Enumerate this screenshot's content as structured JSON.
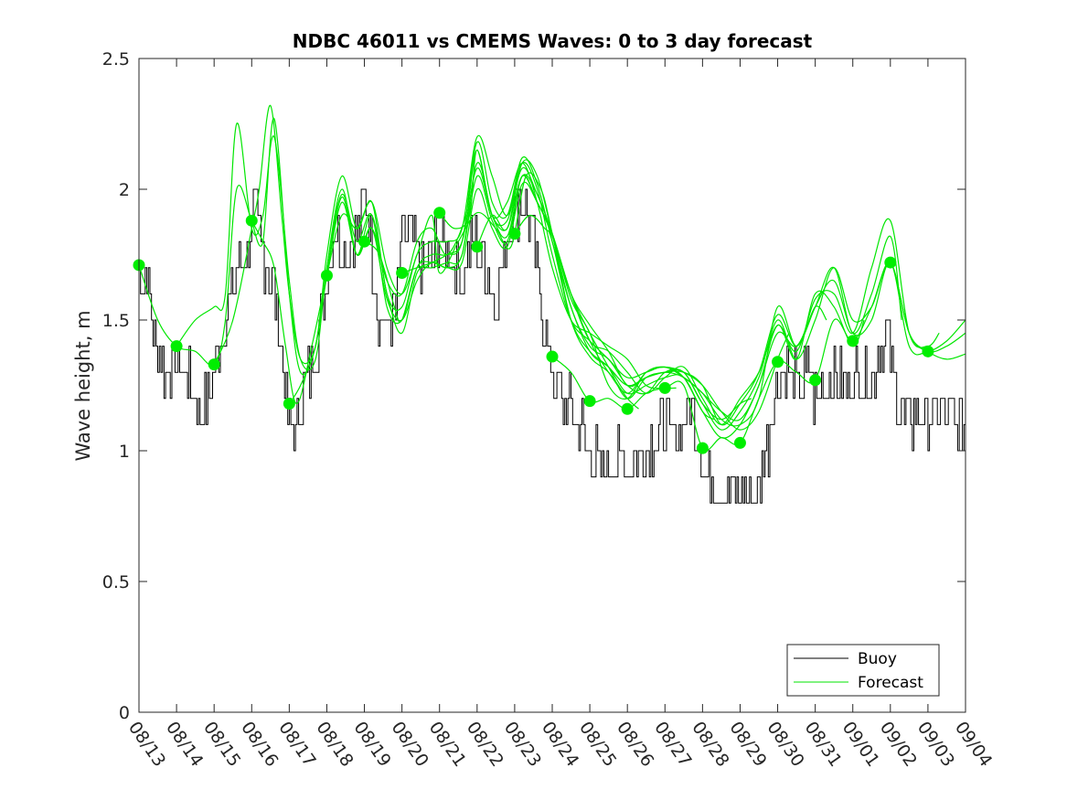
{
  "chart_data": {
    "type": "line",
    "title": "NDBC 46011 vs CMEMS Waves: 0 to 3 day forecast",
    "xlabel": "",
    "ylabel": "Wave height, m",
    "ylim": [
      0,
      2.5
    ],
    "xlim": [
      0,
      22
    ],
    "yticks": [
      "0",
      "0.5",
      "1",
      "1.5",
      "2",
      "2.5"
    ],
    "xticks": [
      "08/13",
      "08/14",
      "08/15",
      "08/16",
      "08/17",
      "08/18",
      "08/19",
      "08/20",
      "08/21",
      "08/22",
      "08/23",
      "08/24",
      "08/25",
      "08/26",
      "08/27",
      "08/28",
      "08/29",
      "08/30",
      "08/31",
      "09/01",
      "09/02",
      "09/03",
      "09/04"
    ],
    "legend": {
      "location": "bottom-right",
      "entries": [
        "Buoy",
        "Forecast"
      ]
    },
    "colors": {
      "buoy": "#000000",
      "forecast": "#00e600",
      "marker": "#00ee00",
      "axes": "#262626"
    },
    "buoy_anchors": [
      [
        0.0,
        1.65
      ],
      [
        0.25,
        1.65
      ],
      [
        0.4,
        1.45
      ],
      [
        0.7,
        1.3
      ],
      [
        1.0,
        1.35
      ],
      [
        1.3,
        1.3
      ],
      [
        1.5,
        1.2
      ],
      [
        1.75,
        1.15
      ],
      [
        2.0,
        1.25
      ],
      [
        2.3,
        1.5
      ],
      [
        2.6,
        1.65
      ],
      [
        2.9,
        1.75
      ],
      [
        3.1,
        1.9
      ],
      [
        3.35,
        1.75
      ],
      [
        3.6,
        1.65
      ],
      [
        3.85,
        1.4
      ],
      [
        4.0,
        1.1
      ],
      [
        4.15,
        1.05
      ],
      [
        4.4,
        1.2
      ],
      [
        4.7,
        1.35
      ],
      [
        5.0,
        1.65
      ],
      [
        5.3,
        1.85
      ],
      [
        5.6,
        1.75
      ],
      [
        5.9,
        1.85
      ],
      [
        6.05,
        2.0
      ],
      [
        6.2,
        1.8
      ],
      [
        6.4,
        1.55
      ],
      [
        6.65,
        1.45
      ],
      [
        6.9,
        1.55
      ],
      [
        7.0,
        1.8
      ],
      [
        7.3,
        1.85
      ],
      [
        7.6,
        1.65
      ],
      [
        7.85,
        1.75
      ],
      [
        8.0,
        1.8
      ],
      [
        8.3,
        1.75
      ],
      [
        8.6,
        1.65
      ],
      [
        8.9,
        1.8
      ],
      [
        9.2,
        1.75
      ],
      [
        9.5,
        1.55
      ],
      [
        9.8,
        1.75
      ],
      [
        10.0,
        1.95
      ],
      [
        10.2,
        1.95
      ],
      [
        10.4,
        1.9
      ],
      [
        10.6,
        1.7
      ],
      [
        10.8,
        1.5
      ],
      [
        11.0,
        1.3
      ],
      [
        11.3,
        1.2
      ],
      [
        11.6,
        1.15
      ],
      [
        11.8,
        1.1
      ],
      [
        12.0,
        1.0
      ],
      [
        12.3,
        0.95
      ],
      [
        12.6,
        0.95
      ],
      [
        12.9,
        0.95
      ],
      [
        13.2,
        0.95
      ],
      [
        13.5,
        1.0
      ],
      [
        13.8,
        1.05
      ],
      [
        14.0,
        1.1
      ],
      [
        14.3,
        1.05
      ],
      [
        14.6,
        1.15
      ],
      [
        14.9,
        1.1
      ],
      [
        15.0,
        0.95
      ],
      [
        15.3,
        0.9
      ],
      [
        15.6,
        0.85
      ],
      [
        15.9,
        0.85
      ],
      [
        16.2,
        0.85
      ],
      [
        16.5,
        0.85
      ],
      [
        16.8,
        1.05
      ],
      [
        17.0,
        1.25
      ],
      [
        17.3,
        1.3
      ],
      [
        17.6,
        1.25
      ],
      [
        17.9,
        1.3
      ],
      [
        18.0,
        1.2
      ],
      [
        18.3,
        1.25
      ],
      [
        18.6,
        1.3
      ],
      [
        18.9,
        1.25
      ],
      [
        19.2,
        1.3
      ],
      [
        19.5,
        1.25
      ],
      [
        19.8,
        1.45
      ],
      [
        20.0,
        1.4
      ],
      [
        20.2,
        1.2
      ],
      [
        20.5,
        1.1
      ],
      [
        20.8,
        1.15
      ],
      [
        21.1,
        1.1
      ],
      [
        21.4,
        1.15
      ],
      [
        21.7,
        1.1
      ],
      [
        22.0,
        1.1
      ]
    ],
    "forecast_series": [
      {
        "name": "Forecast",
        "x": [
          0,
          0.5,
          1,
          1.5,
          2,
          2.3,
          2.6,
          3,
          3.3,
          3.6,
          3.9,
          4.2,
          4.6,
          5,
          5.4,
          5.8,
          6.2,
          6.6,
          7,
          7.4,
          7.8,
          8,
          8.5,
          9,
          9.5,
          9.9,
          10.3,
          10.7,
          11,
          11.5,
          12,
          12.5,
          13,
          13.3
        ],
        "y": [
          1.71,
          1.5,
          1.4,
          1.38,
          1.33,
          1.5,
          2.0,
          1.88,
          1.8,
          1.7,
          1.4,
          1.18,
          1.4,
          1.67,
          1.9,
          1.85,
          1.95,
          1.7,
          1.6,
          1.75,
          1.9,
          1.68,
          1.8,
          1.91,
          1.85,
          1.78,
          2.05,
          2.0,
          1.83,
          1.5,
          1.36,
          1.3,
          1.2,
          1.16
        ]
      },
      {
        "name": "Forecast",
        "x": [
          1,
          1.5,
          2,
          2.3,
          2.6,
          3,
          3.3,
          3.6,
          4,
          4.3,
          4.7,
          5,
          5.4,
          5.8,
          6.2,
          6.6,
          7,
          7.4,
          7.8,
          8.2,
          8.7,
          9,
          9.4,
          9.8,
          10.2,
          10.6,
          11,
          11.5,
          12,
          12.5,
          13,
          13.5,
          14,
          14.3
        ],
        "y": [
          1.4,
          1.5,
          1.55,
          1.6,
          2.25,
          1.85,
          1.9,
          2.2,
          1.65,
          1.35,
          1.35,
          1.7,
          2.0,
          1.75,
          1.85,
          1.65,
          1.6,
          1.8,
          1.85,
          1.75,
          1.9,
          2.15,
          1.9,
          1.95,
          2.1,
          1.95,
          1.7,
          1.5,
          1.45,
          1.4,
          1.35,
          1.25,
          1.24,
          1.24
        ]
      },
      {
        "name": "Forecast",
        "x": [
          2,
          2.5,
          3,
          3.2,
          3.5,
          3.8,
          4,
          4.3,
          4.7,
          5,
          5.4,
          5.8,
          6.2,
          6.6,
          7,
          7.4,
          7.8,
          8.2,
          8.6,
          9,
          9.4,
          9.8,
          10.2,
          10.6,
          11,
          11.5,
          12,
          12.5,
          13,
          13.5,
          14,
          14.5,
          15,
          15.3
        ],
        "y": [
          1.33,
          1.5,
          1.85,
          2.0,
          2.32,
          1.9,
          1.6,
          1.35,
          1.4,
          1.75,
          2.05,
          1.85,
          1.95,
          1.6,
          1.55,
          1.75,
          1.8,
          1.8,
          1.85,
          2.2,
          2.05,
          1.9,
          2.1,
          2.0,
          1.75,
          1.5,
          1.42,
          1.35,
          1.28,
          1.3,
          1.32,
          1.28,
          1.15,
          1.12
        ]
      },
      {
        "name": "Forecast",
        "x": [
          3,
          3.3,
          3.6,
          4,
          4.3,
          4.7,
          5,
          5.4,
          5.8,
          6.2,
          6.6,
          7,
          7.4,
          7.8,
          8.2,
          8.6,
          9,
          9.4,
          9.8,
          10.2,
          10.6,
          11,
          11.5,
          12,
          12.5,
          13,
          13.5,
          14,
          14.5,
          15,
          15.5,
          16,
          16.3
        ],
        "y": [
          1.88,
          1.8,
          2.27,
          1.6,
          1.3,
          1.4,
          1.7,
          1.98,
          1.8,
          1.9,
          1.55,
          1.5,
          1.7,
          1.75,
          1.75,
          1.8,
          2.18,
          1.95,
          1.9,
          2.12,
          2.02,
          1.8,
          1.55,
          1.38,
          1.32,
          1.25,
          1.28,
          1.3,
          1.3,
          1.18,
          1.12,
          1.18,
          1.2
        ]
      },
      {
        "name": "Forecast",
        "x": [
          4,
          4.3,
          4.7,
          5,
          5.4,
          5.8,
          6.2,
          6.6,
          7,
          7.4,
          7.8,
          8.2,
          8.6,
          9,
          9.4,
          9.8,
          10.2,
          10.6,
          11,
          11.5,
          12,
          12.5,
          13,
          13.5,
          14,
          14.5,
          15,
          15.5,
          16,
          16.5,
          17,
          17.3
        ],
        "y": [
          1.18,
          1.25,
          1.4,
          1.67,
          1.97,
          1.75,
          1.9,
          1.6,
          1.45,
          1.68,
          1.7,
          1.72,
          1.75,
          2.1,
          1.9,
          1.82,
          2.05,
          1.98,
          1.83,
          1.6,
          1.42,
          1.3,
          1.22,
          1.3,
          1.32,
          1.3,
          1.25,
          1.15,
          1.08,
          1.15,
          1.35,
          1.45
        ]
      },
      {
        "name": "Forecast",
        "x": [
          5,
          5.4,
          5.8,
          6.2,
          6.6,
          7,
          7.4,
          7.8,
          8.2,
          8.6,
          9,
          9.4,
          9.8,
          10.2,
          10.6,
          11,
          11.5,
          12,
          12.5,
          13,
          13.5,
          14,
          14.5,
          15,
          15.5,
          16,
          16.5,
          17,
          17.5,
          18,
          18.3
        ],
        "y": [
          1.67,
          1.95,
          1.75,
          1.85,
          1.58,
          1.5,
          1.65,
          1.72,
          1.7,
          1.75,
          2.05,
          1.88,
          1.8,
          2.05,
          1.95,
          1.83,
          1.58,
          1.45,
          1.25,
          1.2,
          1.3,
          1.32,
          1.28,
          1.22,
          1.12,
          1.1,
          1.2,
          1.55,
          1.4,
          1.55,
          1.5
        ]
      },
      {
        "name": "Forecast",
        "x": [
          6,
          6.4,
          6.8,
          7,
          7.4,
          7.8,
          8.2,
          8.6,
          9,
          9.4,
          9.8,
          10.2,
          10.6,
          11,
          11.5,
          12,
          12.5,
          13,
          13.5,
          14,
          14.5,
          15,
          15.5,
          16,
          16.5,
          17,
          17.5,
          18,
          18.5,
          19,
          19.3
        ],
        "y": [
          1.8,
          1.75,
          1.55,
          1.5,
          1.7,
          1.72,
          1.7,
          1.72,
          2.0,
          1.85,
          1.78,
          2.02,
          1.95,
          1.82,
          1.6,
          1.48,
          1.38,
          1.25,
          1.28,
          1.3,
          1.28,
          1.22,
          1.15,
          1.12,
          1.25,
          1.48,
          1.35,
          1.6,
          1.55,
          1.4,
          1.5
        ]
      },
      {
        "name": "Forecast",
        "x": [
          7,
          7.4,
          7.8,
          8.2,
          8.6,
          9,
          9.4,
          9.8,
          10.2,
          10.6,
          11,
          11.5,
          12,
          12.5,
          13,
          13.5,
          14,
          14.5,
          15,
          15.5,
          16,
          16.5,
          17,
          17.5,
          18,
          18.5,
          19,
          19.5,
          20,
          20.3
        ],
        "y": [
          1.68,
          1.7,
          1.72,
          1.75,
          1.8,
          2.08,
          1.9,
          1.85,
          2.05,
          1.95,
          1.83,
          1.6,
          1.45,
          1.32,
          1.2,
          1.28,
          1.3,
          1.3,
          1.25,
          1.1,
          1.18,
          1.3,
          1.52,
          1.4,
          1.55,
          1.7,
          1.45,
          1.6,
          1.82,
          1.5
        ]
      },
      {
        "name": "Forecast",
        "x": [
          8,
          8.4,
          8.8,
          9,
          9.4,
          9.8,
          10.2,
          10.6,
          11,
          11.5,
          12,
          12.5,
          13,
          13.5,
          14,
          14.5,
          15,
          15.5,
          16,
          16.5,
          17,
          17.5,
          18,
          18.5,
          19,
          19.5,
          20,
          20.5,
          21,
          21.3
        ],
        "y": [
          1.91,
          1.85,
          1.9,
          2.15,
          1.9,
          1.88,
          2.08,
          1.98,
          1.83,
          1.6,
          1.42,
          1.38,
          1.3,
          1.22,
          1.28,
          1.32,
          1.2,
          1.1,
          1.2,
          1.3,
          1.48,
          1.38,
          1.58,
          1.6,
          1.45,
          1.7,
          1.88,
          1.45,
          1.4,
          1.45
        ]
      },
      {
        "name": "Forecast",
        "x": [
          9,
          9.4,
          9.8,
          10.2,
          10.6,
          11,
          11.5,
          12,
          12.5,
          13,
          13.5,
          14,
          14.5,
          15,
          15.5,
          16,
          16.5,
          17,
          17.5,
          18,
          18.5,
          19,
          19.5,
          20,
          20.5,
          21,
          21.5,
          22
        ],
        "y": [
          1.78,
          1.9,
          1.85,
          2.1,
          2.05,
          1.83,
          1.55,
          1.4,
          1.35,
          1.25,
          1.22,
          1.3,
          1.3,
          1.18,
          1.08,
          1.15,
          1.28,
          1.5,
          1.35,
          1.5,
          1.7,
          1.5,
          1.55,
          1.72,
          1.45,
          1.38,
          1.4,
          1.45
        ]
      },
      {
        "name": "Forecast",
        "x": [
          10,
          10.4,
          10.8,
          11,
          11.5,
          12,
          12.5,
          13,
          13.5,
          14,
          14.5,
          15,
          15.5,
          16,
          16.5,
          17,
          17.5,
          18,
          18.5,
          19,
          19.5,
          20,
          20.5,
          21,
          21.5,
          22
        ],
        "y": [
          1.83,
          1.9,
          1.85,
          1.8,
          1.5,
          1.38,
          1.32,
          1.22,
          1.25,
          1.28,
          1.28,
          1.15,
          1.05,
          1.1,
          1.25,
          1.45,
          1.4,
          1.55,
          1.65,
          1.45,
          1.5,
          1.72,
          1.4,
          1.38,
          1.42,
          1.5
        ]
      },
      {
        "name": "Forecast",
        "x": [
          11,
          11.5,
          12,
          12.5,
          13,
          13.5,
          14,
          14.5,
          15,
          15.5,
          16,
          16.5,
          17,
          17.5,
          18,
          18.5,
          19,
          19.5,
          20,
          20.5,
          21,
          21.5,
          22
        ],
        "y": [
          1.36,
          1.3,
          1.19,
          1.2,
          1.16,
          1.22,
          1.24,
          1.25,
          1.01,
          1.05,
          1.03,
          1.2,
          1.34,
          1.3,
          1.27,
          1.5,
          1.42,
          1.55,
          1.72,
          1.45,
          1.38,
          1.35,
          1.37
        ]
      }
    ],
    "markers": {
      "x": [
        0,
        1,
        2,
        3,
        4,
        5,
        6,
        7,
        8,
        9,
        10,
        11,
        12,
        13,
        14,
        15,
        16,
        17,
        18,
        19,
        20,
        21
      ],
      "y": [
        1.71,
        1.4,
        1.33,
        1.88,
        1.18,
        1.67,
        1.8,
        1.68,
        1.91,
        1.78,
        1.83,
        1.36,
        1.19,
        1.16,
        1.24,
        1.01,
        1.03,
        1.34,
        1.27,
        1.42,
        1.72,
        1.38
      ]
    }
  }
}
